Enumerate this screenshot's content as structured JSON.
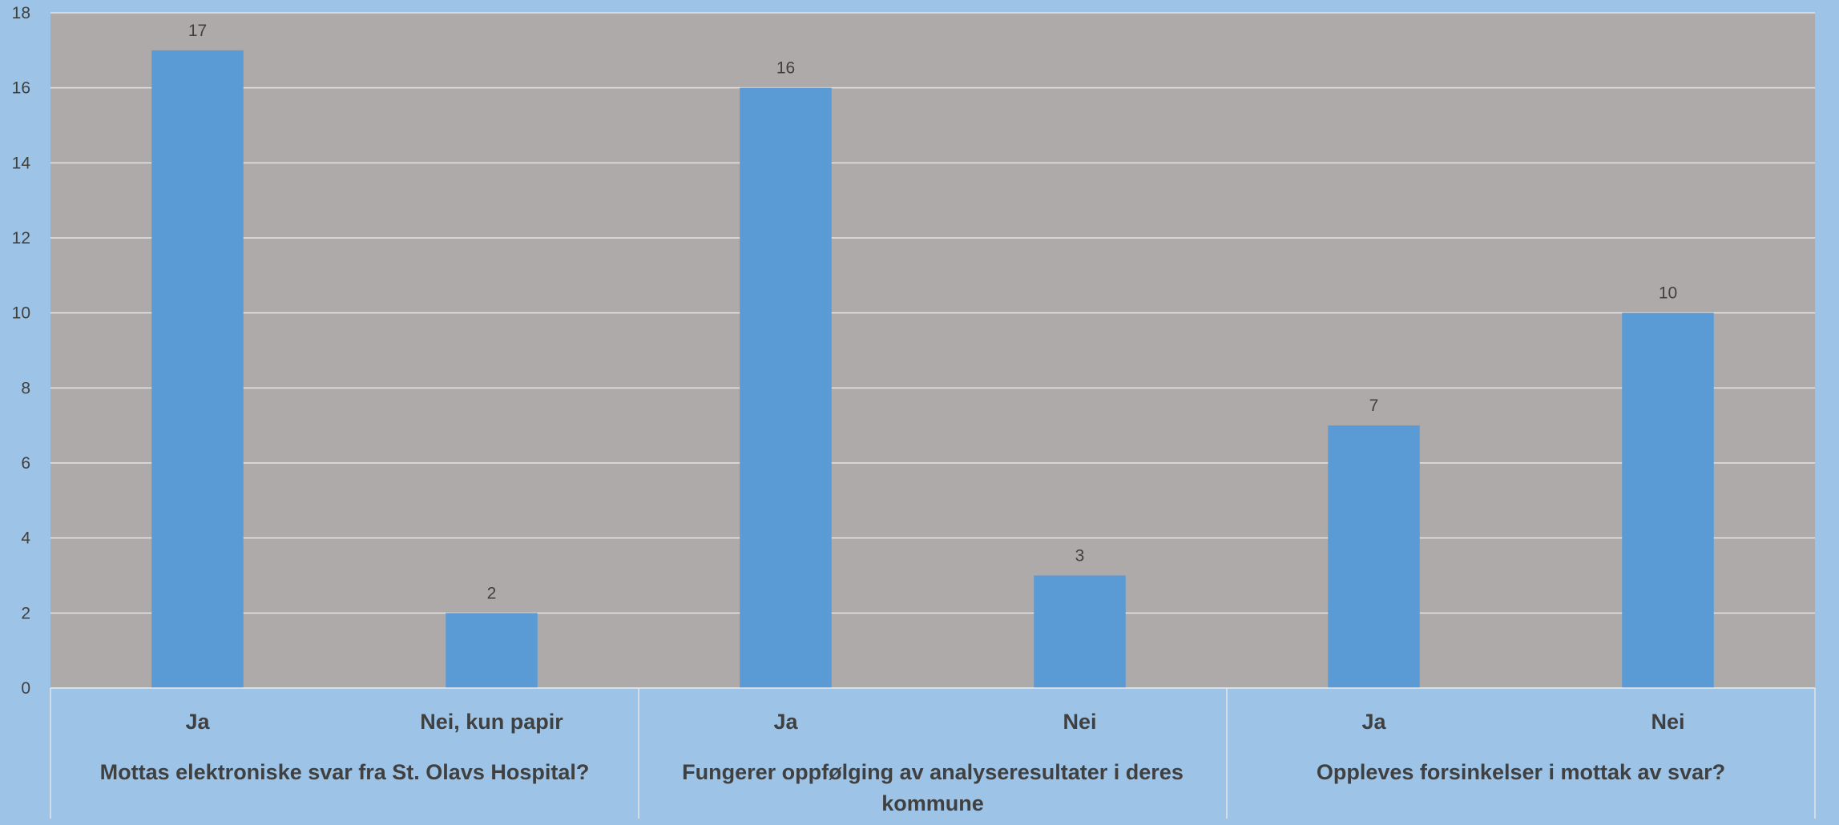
{
  "chart_data": {
    "type": "bar",
    "title": "",
    "xlabel": "",
    "ylabel": "",
    "ylim": [
      0,
      18
    ],
    "yticks": [
      0,
      2,
      4,
      6,
      8,
      10,
      12,
      14,
      16,
      18
    ],
    "grid": true,
    "legend": "none",
    "bar_color": "#5b9bd5",
    "plot_background": "#aeaaaa",
    "page_background": "#9dc3e6",
    "groups": [
      {
        "label": "Mottas elektroniske svar fra St. Olavs Hospital?",
        "categories": [
          "Ja",
          "Nei, kun papir"
        ],
        "values": [
          17,
          2
        ]
      },
      {
        "label": "Fungerer oppfølging av analyseresultater i deres kommune",
        "categories": [
          "Ja",
          "Nei"
        ],
        "values": [
          16,
          3
        ]
      },
      {
        "label": "Oppleves forsinkelser i mottak av svar?",
        "categories": [
          "Ja",
          "Nei"
        ],
        "values": [
          7,
          10
        ]
      }
    ]
  }
}
